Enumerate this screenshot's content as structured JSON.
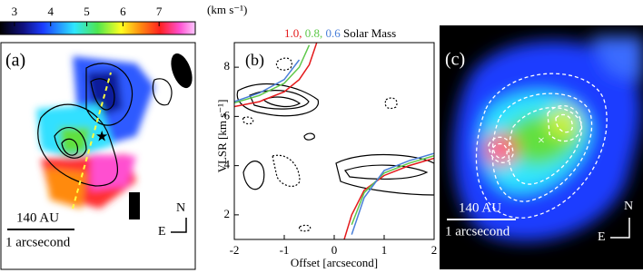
{
  "colorbar": {
    "ticks": [
      3,
      4,
      5,
      6,
      7
    ],
    "lim": [
      2.6,
      8.0
    ],
    "unit": "(km s⁻¹)"
  },
  "panel_a": {
    "label": "(a)",
    "scale_au": "140 AU",
    "scale_arcsec": "1 arcsecond",
    "north": "N",
    "east": "E"
  },
  "panel_c": {
    "label": "(c)",
    "scale_au": "140 AU",
    "scale_arcsec": "1 arcsecond",
    "north": "N",
    "east": "E"
  },
  "chart_data": {
    "type": "line",
    "title": "Solar Mass",
    "panel_label": "(b)",
    "x_label": "Offset [arcsecond]",
    "y_label": "VLSR [km s⁻¹]",
    "x": [
      -2,
      -1.5,
      -1,
      -0.7,
      -0.5,
      -0.35,
      0,
      0.2,
      0.35,
      0.6,
      1,
      1.5,
      2
    ],
    "series": [
      {
        "name": "1.0,",
        "color": "#e41a1c",
        "values": [
          6.4,
          6.6,
          7.0,
          7.5,
          8.1,
          9.0,
          null,
          1.0,
          2.0,
          3.0,
          3.6,
          4.0,
          4.3
        ]
      },
      {
        "name": "0.8,",
        "color": "#5ec84a",
        "values": [
          6.55,
          6.85,
          7.35,
          8.0,
          8.9,
          null,
          null,
          null,
          1.6,
          2.9,
          3.7,
          4.1,
          4.4
        ]
      },
      {
        "name": "0.6",
        "color": "#4a7fd9",
        "values": [
          6.6,
          6.95,
          7.5,
          8.3,
          null,
          null,
          null,
          null,
          1.2,
          2.7,
          3.8,
          4.2,
          4.5
        ]
      }
    ],
    "xlim": [
      -2,
      2
    ],
    "ylim": [
      1,
      9
    ],
    "xticks": [
      -2,
      -1,
      0,
      1,
      2
    ],
    "yticks": [
      2,
      4,
      6,
      8
    ]
  }
}
